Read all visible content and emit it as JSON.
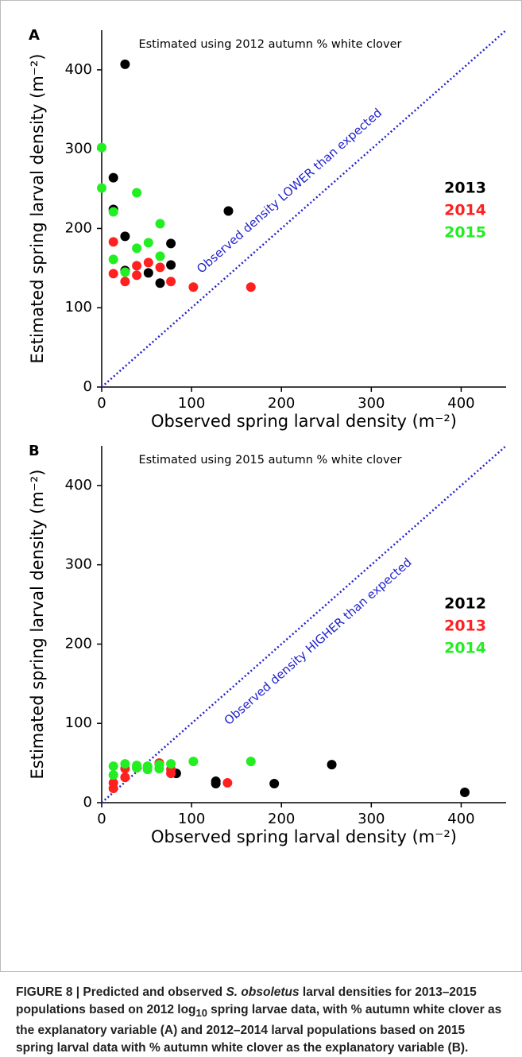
{
  "chart_data": [
    {
      "type": "scatter",
      "panel_label": "A",
      "annotation": "Estimated using 2012 autumn % white clover",
      "diagonal_label": "Observed density LOWER than expected",
      "xlabel": "Observed spring larval density (m⁻²)",
      "ylabel": "Estimated spring larval density (m⁻²)",
      "xlim": [
        0,
        450
      ],
      "ylim": [
        0,
        450
      ],
      "xticks": [
        0,
        100,
        200,
        300,
        400
      ],
      "yticks": [
        0,
        100,
        200,
        300,
        400
      ],
      "legend": "right",
      "diagonal_color": "#2222cc",
      "series": [
        {
          "name": "2013",
          "color": "#000000",
          "x": [
            26,
            13,
            13,
            26,
            26,
            52,
            65,
            77,
            77,
            141
          ],
          "y": [
            407,
            264,
            224,
            190,
            147,
            144,
            131,
            181,
            154,
            222
          ]
        },
        {
          "name": "2014",
          "color": "#ff2020",
          "x": [
            13,
            13,
            26,
            39,
            39,
            52,
            65,
            77,
            102,
            166
          ],
          "y": [
            183,
            143,
            133,
            153,
            141,
            157,
            151,
            133,
            126,
            126
          ]
        },
        {
          "name": "2015",
          "color": "#22ee22",
          "x": [
            0,
            0,
            13,
            13,
            26,
            39,
            39,
            52,
            65,
            65
          ],
          "y": [
            302,
            251,
            221,
            161,
            145,
            245,
            175,
            182,
            206,
            165
          ]
        }
      ]
    },
    {
      "type": "scatter",
      "panel_label": "B",
      "annotation": "Estimated using 2015 autumn % white clover",
      "diagonal_label": "Observed density HIGHER than expected",
      "xlabel": "Observed spring larval density (m⁻²)",
      "ylabel": "Estimated spring larval density (m⁻²)",
      "xlim": [
        0,
        450
      ],
      "ylim": [
        0,
        450
      ],
      "xticks": [
        0,
        100,
        200,
        300,
        400
      ],
      "yticks": [
        0,
        100,
        200,
        300,
        400
      ],
      "legend": "right",
      "diagonal_color": "#2222cc",
      "series": [
        {
          "name": "2012",
          "color": "#000000",
          "x": [
            83,
            127,
            127,
            192,
            256,
            404
          ],
          "y": [
            37,
            27,
            24,
            24,
            48,
            13
          ]
        },
        {
          "name": "2013",
          "color": "#ff2020",
          "x": [
            13,
            13,
            26,
            26,
            39,
            51,
            64,
            77,
            77,
            140
          ],
          "y": [
            25,
            18,
            32,
            43,
            44,
            45,
            50,
            37,
            42,
            25
          ]
        },
        {
          "name": "2014",
          "color": "#22ee22",
          "x": [
            13,
            13,
            26,
            39,
            39,
            51,
            51,
            64,
            64,
            77,
            102,
            166
          ],
          "y": [
            46,
            35,
            49,
            47,
            44,
            42,
            46,
            43,
            48,
            49,
            52,
            52
          ]
        }
      ]
    }
  ],
  "caption": [
    "FIGURE 8 | Predicted and observed ",
    "S. obsoletus",
    " larval densities for 2013–2015 populations based on 2012 log",
    "10",
    " spring larvae data, with % autumn white clover as the explanatory variable (A) and 2012–2014 larval populations based on 2015 spring larval data with % autumn white clover as the explanatory variable (B)."
  ]
}
